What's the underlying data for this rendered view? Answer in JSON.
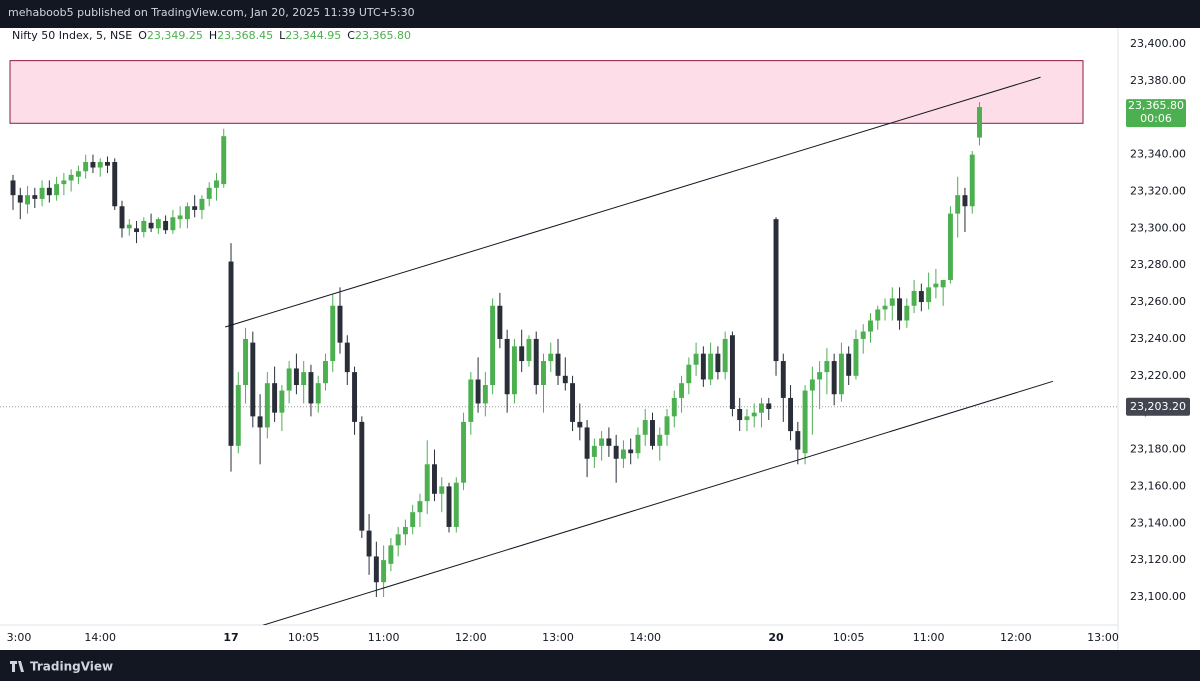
{
  "header": {
    "text": "mehaboob5 published on TradingView.com, Jan 20, 2025 11:39 UTC+5:30"
  },
  "legend": {
    "symbol": "Nifty 50 Index, 5, NSE",
    "ohlc": [
      {
        "key": "O",
        "value": "23,349.25"
      },
      {
        "key": "H",
        "value": "23,368.45"
      },
      {
        "key": "L",
        "value": "23,344.95"
      },
      {
        "key": "C",
        "value": "23,365.80"
      }
    ]
  },
  "footer": {
    "brand": "TradingView"
  },
  "chart_data": {
    "type": "candlestick",
    "up_color": "#4caf50",
    "down_color": "#2a2e39",
    "grid": false,
    "xlim": [
      -1.79,
      152.06
    ],
    "xticks": [
      {
        "value": 0,
        "label": "3:00"
      },
      {
        "value": 12,
        "label": "14:00"
      },
      {
        "value": 30,
        "label": "17"
      },
      {
        "value": 40,
        "label": "10:05"
      },
      {
        "value": 51,
        "label": "11:00"
      },
      {
        "value": 63,
        "label": "12:00"
      },
      {
        "value": 75,
        "label": "13:00"
      },
      {
        "value": 87,
        "label": "14:00"
      },
      {
        "value": 105,
        "label": "20"
      },
      {
        "value": 115,
        "label": "10:05"
      },
      {
        "value": 126,
        "label": "11:00"
      },
      {
        "value": 138,
        "label": "12:00"
      },
      {
        "value": 150,
        "label": "13:00"
      }
    ],
    "ylim": [
      23084.8,
      23408.7
    ],
    "yticks": [
      {
        "value": 23100,
        "label": "23,100.00"
      },
      {
        "value": 23120,
        "label": "23,120.00"
      },
      {
        "value": 23140,
        "label": "23,140.00"
      },
      {
        "value": 23160,
        "label": "23,160.00"
      },
      {
        "value": 23180,
        "label": "23,180.00"
      },
      {
        "value": 23200,
        "label": "23,200.00"
      },
      {
        "value": 23220,
        "label": "23,220.00"
      },
      {
        "value": 23240,
        "label": "23,240.00"
      },
      {
        "value": 23260,
        "label": "23,260.00"
      },
      {
        "value": 23280,
        "label": "23,280.00"
      },
      {
        "value": 23300,
        "label": "23,300.00"
      },
      {
        "value": 23320,
        "label": "23,320.00"
      },
      {
        "value": 23340,
        "label": "23,340.00"
      },
      {
        "value": 23360,
        "label": "23,360.00"
      },
      {
        "value": 23380,
        "label": "23,380.00"
      },
      {
        "value": 23400,
        "label": "23,400.00"
      }
    ],
    "open": [
      23326,
      23318,
      23313,
      23318,
      23316,
      23322,
      23318,
      23324,
      23326,
      23328,
      23331,
      23336,
      23333,
      23336,
      23336,
      23312,
      23300,
      23300,
      23298,
      23303,
      23300,
      23304,
      23299,
      23305,
      23305,
      23312,
      23310,
      23316,
      23322,
      23324,
      23282,
      23182,
      23215,
      23238,
      23198,
      23192,
      23216,
      23200,
      23212,
      23224,
      23215,
      23222,
      23205,
      23216,
      23228,
      23258,
      23238,
      23222,
      23195,
      23136,
      23122,
      23108,
      23118,
      23128,
      23134,
      23138,
      23146,
      23152,
      23172,
      23156,
      23160,
      23138,
      23162,
      23195,
      23218,
      23205,
      23215,
      23258,
      23240,
      23210,
      23236,
      23228,
      23240,
      23215,
      23228,
      23232,
      23220,
      23216,
      23195,
      23192,
      23176,
      23182,
      23186,
      23182,
      23175,
      23180,
      23178,
      23188,
      23196,
      23182,
      23188,
      23198,
      23208,
      23216,
      23226,
      23232,
      23218,
      23232,
      23222,
      23242,
      23202,
      23196,
      23198,
      23200,
      23205,
      23305,
      23228,
      23208,
      23190,
      23178,
      23212,
      23218,
      23222,
      23228,
      23210,
      23232,
      23220,
      23240,
      23244,
      23250,
      23256,
      23258,
      23262,
      23250,
      23258,
      23266,
      23260,
      23268,
      23268,
      23272,
      23308,
      23318,
      23312,
      23349.25
    ],
    "high": [
      23329,
      23322,
      23323,
      23322,
      23326,
      23326,
      23328,
      23330,
      23332,
      23334,
      23340,
      23340,
      23338,
      23339,
      23338,
      23315,
      23305,
      23304,
      23306,
      23308,
      23306,
      23307,
      23310,
      23312,
      23314,
      23318,
      23318,
      23325,
      23330,
      23354,
      23292,
      23222,
      23246,
      23244,
      23210,
      23222,
      23225,
      23215,
      23228,
      23232,
      23228,
      23226,
      23220,
      23232,
      23264,
      23268,
      23242,
      23225,
      23198,
      23145,
      23130,
      23128,
      23132,
      23138,
      23142,
      23150,
      23156,
      23185,
      23180,
      23165,
      23162,
      23165,
      23200,
      23222,
      23230,
      23222,
      23262,
      23265,
      23245,
      23240,
      23245,
      23242,
      23244,
      23232,
      23238,
      23240,
      23230,
      23220,
      23205,
      23196,
      23186,
      23190,
      23192,
      23188,
      23185,
      23186,
      23192,
      23202,
      23200,
      23192,
      23202,
      23212,
      23220,
      23230,
      23238,
      23236,
      23238,
      23236,
      23244,
      23244,
      23208,
      23202,
      23205,
      23208,
      23208,
      23306,
      23232,
      23215,
      23195,
      23215,
      23225,
      23228,
      23235,
      23232,
      23238,
      23236,
      23245,
      23248,
      23254,
      23258,
      23262,
      23268,
      23268,
      23262,
      23272,
      23270,
      23276,
      23278,
      23272,
      23312,
      23328,
      23322,
      23342,
      23368.45
    ],
    "low": [
      23310,
      23305,
      23308,
      23311,
      23312,
      23314,
      23315,
      23318,
      23320,
      23324,
      23327,
      23330,
      23328,
      23330,
      23310,
      23295,
      23296,
      23292,
      23295,
      23298,
      23297,
      23297,
      23297,
      23300,
      23300,
      23306,
      23305,
      23312,
      23315,
      23322,
      23168,
      23178,
      23205,
      23192,
      23172,
      23186,
      23195,
      23190,
      23205,
      23210,
      23205,
      23198,
      23200,
      23212,
      23222,
      23232,
      23215,
      23188,
      23132,
      23112,
      23100,
      23100,
      23114,
      23122,
      23128,
      23134,
      23138,
      23145,
      23152,
      23146,
      23135,
      23135,
      23158,
      23188,
      23200,
      23198,
      23210,
      23235,
      23200,
      23205,
      23222,
      23225,
      23210,
      23200,
      23222,
      23215,
      23212,
      23190,
      23185,
      23165,
      23170,
      23174,
      23176,
      23162,
      23170,
      23172,
      23175,
      23182,
      23180,
      23174,
      23182,
      23192,
      23200,
      23210,
      23220,
      23214,
      23215,
      23218,
      23218,
      23198,
      23190,
      23190,
      23192,
      23192,
      23196,
      23220,
      23195,
      23185,
      23172,
      23172,
      23188,
      23202,
      23210,
      23204,
      23206,
      23215,
      23218,
      23232,
      23238,
      23245,
      23250,
      23250,
      23245,
      23246,
      23254,
      23255,
      23256,
      23262,
      23258,
      23270,
      23295,
      23298,
      23308,
      23344.95
    ],
    "close": [
      23318,
      23314,
      23318,
      23316,
      23322,
      23318,
      23324,
      23326,
      23329,
      23331,
      23336,
      23333,
      23336,
      23334,
      23312,
      23300,
      23302,
      23298,
      23304,
      23300,
      23305,
      23299,
      23306,
      23307,
      23312,
      23310,
      23316,
      23322,
      23326,
      23350,
      23182,
      23215,
      23240,
      23198,
      23192,
      23216,
      23200,
      23212,
      23224,
      23215,
      23222,
      23205,
      23216,
      23228,
      23258,
      23238,
      23222,
      23195,
      23136,
      23122,
      23108,
      23120,
      23128,
      23134,
      23138,
      23146,
      23152,
      23172,
      23156,
      23160,
      23138,
      23162,
      23195,
      23218,
      23205,
      23215,
      23258,
      23240,
      23210,
      23236,
      23228,
      23240,
      23215,
      23228,
      23232,
      23220,
      23216,
      23195,
      23192,
      23175,
      23182,
      23186,
      23182,
      23175,
      23180,
      23178,
      23188,
      23196,
      23182,
      23188,
      23198,
      23208,
      23216,
      23226,
      23232,
      23218,
      23232,
      23222,
      23240,
      23202,
      23196,
      23198,
      23200,
      23205,
      23202,
      23228,
      23208,
      23190,
      23180,
      23212,
      23218,
      23222,
      23228,
      23210,
      23232,
      23220,
      23240,
      23244,
      23250,
      23256,
      23258,
      23262,
      23250,
      23258,
      23266,
      23260,
      23268,
      23270,
      23272,
      23308,
      23318,
      23312,
      23340,
      23365.8
    ],
    "zone": {
      "color": "#fcdde8",
      "border": "#8e1a44",
      "low": 23357,
      "high": 23391
    },
    "trend_lines": [
      {
        "x": [
          29.2,
          141.4
        ],
        "y": [
          23246.5,
          23382
        ]
      },
      {
        "x": [
          33.6,
          143.1
        ],
        "y": [
          23083.7,
          23217
        ]
      }
    ],
    "last_price": {
      "value": 23365.8,
      "label": "23,365.80",
      "countdown": "00:06"
    },
    "crosshair": {
      "value": 23203.2,
      "label": "23,203.20"
    }
  }
}
